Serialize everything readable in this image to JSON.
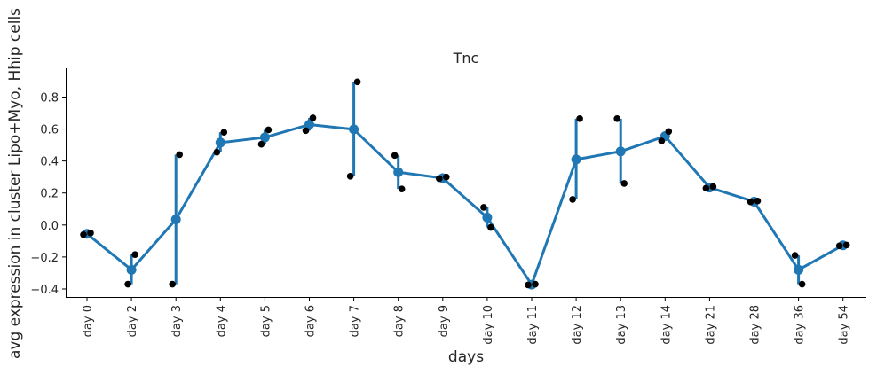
{
  "chart_data": {
    "type": "line",
    "title": "Tnc",
    "xlabel": "days",
    "ylabel": "avg expression in cluster Lipo+Myo, Hhip cells",
    "categories": [
      "day 0",
      "day 2",
      "day 3",
      "day 4",
      "day 5",
      "day 6",
      "day 7",
      "day 8",
      "day 9",
      "day 10",
      "day 11",
      "day 12",
      "day 13",
      "day 14",
      "day 21",
      "day 28",
      "day 36",
      "day 54"
    ],
    "series": [
      {
        "values": [
          -0.055,
          -0.28,
          0.035,
          0.515,
          0.548,
          0.628,
          0.598,
          0.33,
          0.293,
          0.047,
          -0.373,
          0.41,
          0.46,
          0.555,
          0.234,
          0.146,
          -0.28,
          -0.127
        ],
        "error_low": [
          -0.06,
          -0.37,
          -0.37,
          0.455,
          0.505,
          0.59,
          0.305,
          0.225,
          0.29,
          -0.015,
          -0.375,
          0.16,
          0.26,
          0.525,
          0.23,
          0.145,
          -0.37,
          -0.13
        ],
        "error_high": [
          -0.05,
          -0.185,
          0.44,
          0.58,
          0.595,
          0.67,
          0.895,
          0.435,
          0.3,
          0.11,
          -0.37,
          0.665,
          0.665,
          0.585,
          0.24,
          0.15,
          -0.19,
          -0.125
        ],
        "color": "#1f77b4"
      }
    ],
    "replicates": [
      [
        -0.06,
        -0.05
      ],
      [
        -0.37,
        -0.185
      ],
      [
        -0.37,
        0.44
      ],
      [
        0.455,
        0.58
      ],
      [
        0.505,
        0.595
      ],
      [
        0.59,
        0.67
      ],
      [
        0.305,
        0.895
      ],
      [
        0.435,
        0.225
      ],
      [
        0.29,
        0.3
      ],
      [
        0.11,
        -0.015
      ],
      [
        -0.375,
        -0.37
      ],
      [
        0.16,
        0.665
      ],
      [
        0.665,
        0.26
      ],
      [
        0.525,
        0.585
      ],
      [
        0.23,
        0.24
      ],
      [
        0.145,
        0.15
      ],
      [
        -0.19,
        -0.37
      ],
      [
        -0.13,
        -0.125
      ]
    ],
    "replicate_color": "#000000",
    "yticks": [
      -0.4,
      -0.2,
      0.0,
      0.2,
      0.4,
      0.6,
      0.8
    ],
    "ytick_labels": [
      "−0.4",
      "−0.2",
      "0.0",
      "0.2",
      "0.4",
      "0.6",
      "0.8"
    ],
    "ylim": [
      -0.45,
      0.98
    ],
    "grid": false,
    "legend": "none"
  }
}
